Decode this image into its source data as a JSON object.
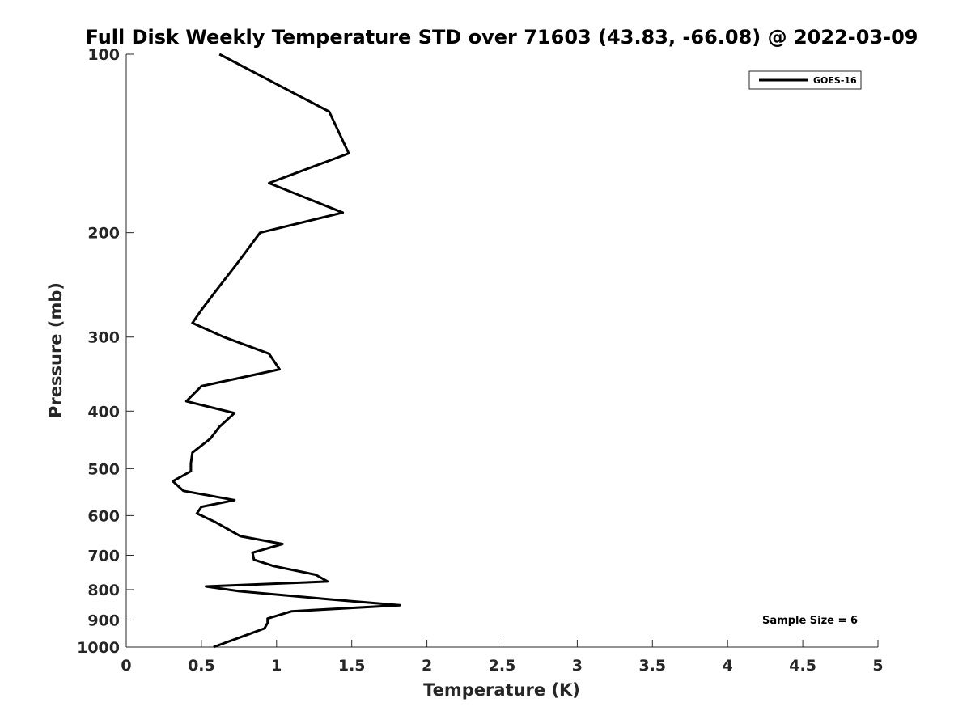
{
  "chart_data": {
    "type": "line",
    "title": "Full Disk Weekly Temperature STD over 71603 (43.83, -66.08) @ 2022-03-09",
    "xlabel": "Temperature (K)",
    "ylabel": "Pressure (mb)",
    "xlim": [
      0,
      5
    ],
    "ylim": [
      100,
      1000
    ],
    "y_scale": "log",
    "y_reversed": true,
    "grid": false,
    "x_ticks": [
      0,
      0.5,
      1,
      1.5,
      2,
      2.5,
      3,
      3.5,
      4,
      4.5,
      5
    ],
    "x_tick_labels": [
      "0",
      "0.5",
      "1",
      "1.5",
      "2",
      "2.5",
      "3",
      "3.5",
      "4",
      "4.5",
      "5"
    ],
    "y_ticks": [
      100,
      200,
      300,
      400,
      500,
      600,
      700,
      800,
      900,
      1000
    ],
    "y_tick_labels": [
      "100",
      "200",
      "300",
      "400",
      "500",
      "600",
      "700",
      "800",
      "900",
      "1000"
    ],
    "legend_position": "top-right",
    "series": [
      {
        "name": "GOES-16",
        "color": "#000000",
        "x": [
          0.62,
          1.35,
          1.48,
          0.95,
          1.44,
          0.89,
          0.74,
          0.6,
          0.5,
          0.44,
          0.65,
          0.95,
          1.02,
          0.5,
          0.4,
          0.72,
          0.62,
          0.56,
          0.44,
          0.43,
          0.43,
          0.31,
          0.38,
          0.72,
          0.5,
          0.47,
          0.59,
          0.76,
          1.04,
          0.84,
          0.85,
          0.98,
          1.26,
          1.34,
          0.53,
          0.75,
          1.34,
          1.82,
          1.1,
          0.94,
          0.94,
          0.92,
          0.82,
          0.58
        ],
        "y": [
          100,
          125,
          147,
          165,
          185,
          200,
          225,
          250,
          270,
          284,
          300,
          320,
          340,
          363,
          385,
          403,
          425,
          445,
          470,
          490,
          505,
          525,
          545,
          565,
          580,
          595,
          615,
          650,
          670,
          693,
          712,
          730,
          755,
          775,
          790,
          805,
          830,
          850,
          870,
          895,
          910,
          930,
          950,
          1000
        ]
      }
    ],
    "annotations": [
      "Sample Size = 6"
    ]
  }
}
